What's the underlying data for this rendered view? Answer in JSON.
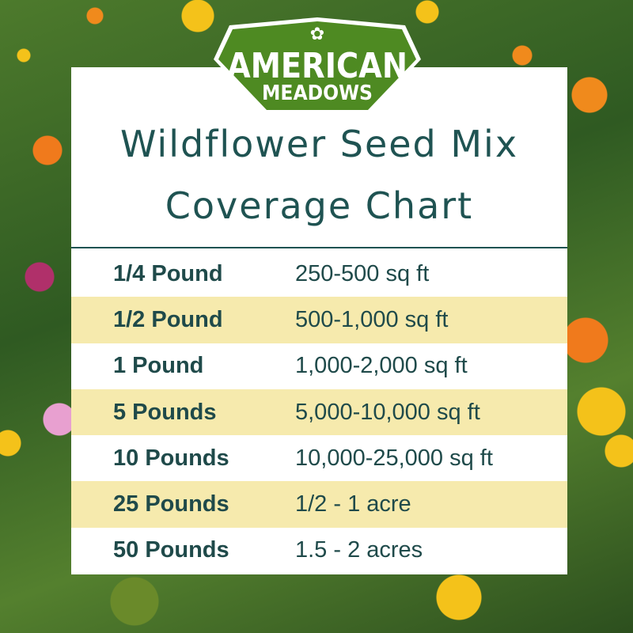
{
  "logo": {
    "text_line1": "AMERICAN",
    "text_line2": "MEADOWS",
    "color": "#4e8a22"
  },
  "title": {
    "line1": "Wildflower Seed Mix",
    "line2": "Coverage Chart"
  },
  "table": {
    "rows": [
      {
        "amount": "1/4 Pound",
        "coverage": "250-500 sq ft"
      },
      {
        "amount": "1/2 Pound",
        "coverage": "500-1,000 sq ft"
      },
      {
        "amount": "1 Pound",
        "coverage": "1,000-2,000 sq ft"
      },
      {
        "amount": "5 Pounds",
        "coverage": "5,000-10,000 sq ft"
      },
      {
        "amount": "10 Pounds",
        "coverage": "10,000-25,000 sq ft"
      },
      {
        "amount": "25 Pounds",
        "coverage": "1/2 - 1 acre"
      },
      {
        "amount": "50 Pounds",
        "coverage": "1.5 - 2 acres"
      }
    ]
  },
  "colors": {
    "text": "#1f5352",
    "stripe": "#f6eaad"
  }
}
